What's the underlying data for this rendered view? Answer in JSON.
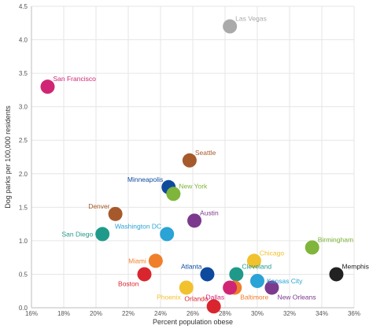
{
  "chart_data": {
    "type": "scatter",
    "title": "",
    "xlabel": "Percent population obese",
    "ylabel": "Dog parks per 100,000 residents",
    "xlim": [
      16,
      36
    ],
    "ylim": [
      0,
      4.5
    ],
    "x_ticks": [
      16,
      18,
      20,
      22,
      24,
      26,
      28,
      30,
      32,
      34,
      36
    ],
    "x_tick_labels": [
      "16%",
      "18%",
      "20%",
      "22%",
      "24%",
      "26%",
      "28%",
      "30%",
      "32%",
      "34%",
      "36%"
    ],
    "y_ticks": [
      0,
      0.5,
      1,
      1.5,
      2,
      2.5,
      3,
      3.5,
      4,
      4.5
    ],
    "y_tick_labels": [
      "0.0",
      "0.5",
      "1.0",
      "1.5",
      "2.0",
      "2.5",
      "3.0",
      "3.5",
      "4.0",
      "4.5"
    ],
    "grid": true,
    "points": [
      {
        "label": "Las Vegas",
        "x": 28.3,
        "y": 4.2,
        "color": "#aaaaaa",
        "label_pos": "above-right"
      },
      {
        "label": "San Francisco",
        "x": 17.0,
        "y": 3.3,
        "color": "#d02575",
        "label_pos": "above-right"
      },
      {
        "label": "Seattle",
        "x": 25.8,
        "y": 2.2,
        "color": "#a65a2b",
        "label_pos": "above-right"
      },
      {
        "label": "Minneapolis",
        "x": 24.5,
        "y": 1.8,
        "color": "#0d4a9e",
        "label_pos": "above-left"
      },
      {
        "label": "New York",
        "x": 24.8,
        "y": 1.7,
        "color": "#7fb53a",
        "label_pos": "above-right"
      },
      {
        "label": "Denver",
        "x": 21.2,
        "y": 1.4,
        "color": "#a65a2b",
        "label_pos": "above-left"
      },
      {
        "label": "Austin",
        "x": 26.1,
        "y": 1.3,
        "color": "#7b3a8e",
        "label_pos": "above-right"
      },
      {
        "label": "San Diego",
        "x": 20.4,
        "y": 1.1,
        "color": "#1f9a8a",
        "label_pos": "left"
      },
      {
        "label": "Washington DC",
        "x": 24.4,
        "y": 1.1,
        "color": "#2aa3d6",
        "label_pos": "above-left"
      },
      {
        "label": "Birmingham",
        "x": 33.4,
        "y": 0.9,
        "color": "#7fb53a",
        "label_pos": "above-right"
      },
      {
        "label": "Miami",
        "x": 23.7,
        "y": 0.7,
        "color": "#f07f2c",
        "label_pos": "left"
      },
      {
        "label": "Chicago",
        "x": 29.8,
        "y": 0.7,
        "color": "#f2c12e",
        "label_pos": "above-right"
      },
      {
        "label": "Atlanta",
        "x": 26.9,
        "y": 0.5,
        "color": "#0d4a9e",
        "label_pos": "above-left"
      },
      {
        "label": "Cleveland",
        "x": 28.7,
        "y": 0.5,
        "color": "#1f9a8a",
        "label_pos": "above-right"
      },
      {
        "label": "Boston",
        "x": 23.0,
        "y": 0.5,
        "color": "#d9262e",
        "label_pos": "below-left"
      },
      {
        "label": "Memphis",
        "x": 34.9,
        "y": 0.5,
        "color": "#222222",
        "label_pos": "above-right"
      },
      {
        "label": "Kansas City",
        "x": 30.0,
        "y": 0.4,
        "color": "#2aa3d6",
        "label_pos": "right"
      },
      {
        "label": "New Orleans",
        "x": 30.9,
        "y": 0.3,
        "color": "#7b3a8e",
        "label_pos": "below-right"
      },
      {
        "label": "Phoenix",
        "x": 25.6,
        "y": 0.3,
        "color": "#f2c12e",
        "label_pos": "below-left"
      },
      {
        "label": "Baltimore",
        "x": 28.6,
        "y": 0.3,
        "color": "#f07f2c",
        "label_pos": "below-right"
      },
      {
        "label": "Dallas",
        "x": 28.3,
        "y": 0.3,
        "color": "#d02575",
        "label_pos": "below-left"
      },
      {
        "label": "Orlando",
        "x": 27.3,
        "y": 0.02,
        "color": "#d9262e",
        "label_pos": "above-left"
      }
    ]
  }
}
